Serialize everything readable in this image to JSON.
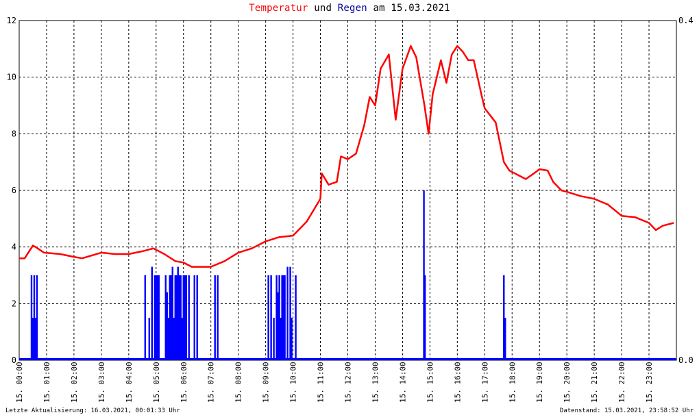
{
  "header": {
    "title_temp": "Temperatur",
    "title_und": "und",
    "title_rain": "Regen",
    "title_rest": "am 15.03.2021"
  },
  "footer": {
    "left": "Letzte Aktualisierung: 16.03.2021, 00:01:33 Uhr",
    "right": "Datenstand: 15.03.2021, 23:58:52 Uhr"
  },
  "colors": {
    "temperature": "#ff0000",
    "rain": "#0000ff",
    "grid": "#000000",
    "title_rain": "#0000a0"
  },
  "chart_data": {
    "type": "line",
    "title": "Temperatur und Regen am 15.03.2021",
    "x_unit": "hour of day",
    "xlim": [
      0,
      24
    ],
    "ylim_left": [
      0,
      12
    ],
    "ylim_right": [
      0,
      0.4
    ],
    "yticks_left": [
      "0",
      "2",
      "4",
      "6",
      "8",
      "10",
      "12"
    ],
    "yticks_right": [
      "0.0",
      "0.4"
    ],
    "xtick_labels": [
      "15. 00:00",
      "15. 01:00",
      "15. 02:00",
      "15. 03:00",
      "15. 04:00",
      "15. 05:00",
      "15. 06:00",
      "15. 07:00",
      "15. 08:00",
      "15. 09:00",
      "15. 10:00",
      "15. 11:00",
      "15. 12:00",
      "15. 13:00",
      "15. 14:00",
      "15. 15:00",
      "15. 16:00",
      "15. 17:00",
      "15. 18:00",
      "15. 19:00",
      "15. 20:00",
      "15. 21:00",
      "15. 22:00",
      "15. 23:00"
    ],
    "grid": true,
    "series": [
      {
        "name": "Temperatur",
        "axis": "left",
        "x": [
          0.0,
          0.2,
          0.5,
          0.6,
          0.9,
          1.5,
          2.0,
          2.3,
          3.0,
          3.5,
          4.0,
          4.5,
          4.9,
          5.3,
          5.7,
          6.0,
          6.3,
          6.6,
          7.0,
          7.5,
          8.0,
          8.5,
          9.0,
          9.5,
          10.0,
          10.5,
          11.0,
          11.05,
          11.3,
          11.6,
          11.75,
          12.0,
          12.3,
          12.6,
          12.8,
          13.0,
          13.2,
          13.5,
          13.75,
          14.0,
          14.3,
          14.5,
          14.8,
          14.95,
          15.1,
          15.4,
          15.6,
          15.8,
          16.0,
          16.2,
          16.4,
          16.6,
          16.9,
          17.0,
          17.4,
          17.7,
          17.9,
          18.1,
          18.5,
          18.8,
          19.0,
          19.3,
          19.5,
          19.8,
          20.0,
          20.5,
          21.0,
          21.5,
          22.0,
          22.5,
          23.0,
          23.25,
          23.5,
          23.9
        ],
        "y": [
          3.6,
          3.6,
          4.05,
          4.0,
          3.8,
          3.75,
          3.65,
          3.6,
          3.8,
          3.75,
          3.75,
          3.85,
          3.95,
          3.75,
          3.5,
          3.45,
          3.3,
          3.3,
          3.3,
          3.5,
          3.8,
          3.95,
          4.2,
          4.35,
          4.4,
          4.9,
          5.7,
          6.6,
          6.2,
          6.3,
          7.2,
          7.1,
          7.3,
          8.3,
          9.3,
          9.0,
          10.3,
          10.8,
          8.5,
          10.3,
          11.1,
          10.7,
          9.0,
          8.0,
          9.4,
          10.6,
          9.8,
          10.8,
          11.1,
          10.9,
          10.6,
          10.6,
          9.3,
          8.9,
          8.4,
          7.0,
          6.7,
          6.6,
          6.4,
          6.6,
          6.75,
          6.7,
          6.3,
          6.0,
          5.95,
          5.8,
          5.7,
          5.5,
          5.1,
          5.05,
          4.85,
          4.6,
          4.75,
          4.85
        ]
      },
      {
        "name": "Regen",
        "axis": "right",
        "type": "bar",
        "x": [
          0.45,
          0.5,
          0.55,
          0.6,
          0.65,
          4.6,
          4.75,
          4.85,
          4.95,
          5.0,
          5.05,
          5.1,
          5.35,
          5.4,
          5.45,
          5.5,
          5.55,
          5.6,
          5.65,
          5.7,
          5.75,
          5.8,
          5.85,
          5.9,
          5.95,
          6.0,
          6.05,
          6.1,
          6.2,
          6.4,
          6.5,
          7.15,
          7.25,
          9.1,
          9.2,
          9.3,
          9.4,
          9.45,
          9.5,
          9.55,
          9.6,
          9.65,
          9.7,
          9.8,
          9.9,
          9.95,
          10.1,
          14.78,
          14.82,
          17.7,
          17.75
        ],
        "values": [
          0.1,
          0.05,
          0.1,
          0.05,
          0.1,
          0.1,
          0.05,
          0.11,
          0.1,
          0.1,
          0.1,
          0.1,
          0.1,
          0.08,
          0.05,
          0.1,
          0.1,
          0.11,
          0.05,
          0.1,
          0.1,
          0.11,
          0.1,
          0.1,
          0.05,
          0.1,
          0.1,
          0.1,
          0.1,
          0.1,
          0.1,
          0.1,
          0.1,
          0.1,
          0.1,
          0.05,
          0.1,
          0.08,
          0.1,
          0.05,
          0.1,
          0.1,
          0.1,
          0.11,
          0.11,
          0.05,
          0.1,
          0.2,
          0.1,
          0.1,
          0.05
        ]
      }
    ]
  }
}
